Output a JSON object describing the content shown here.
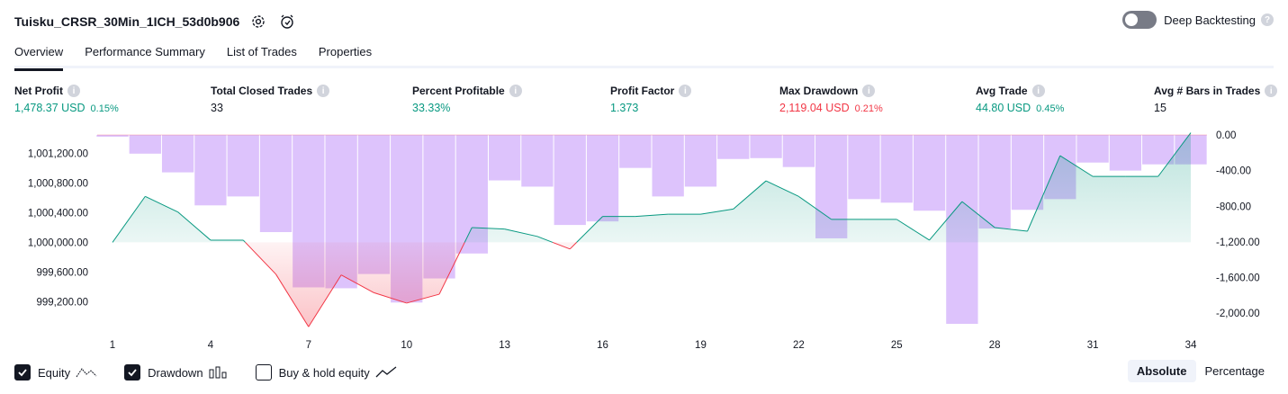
{
  "header": {
    "strategy_name": "Tuisku_CRSR_30Min_1ICH_53d0b906",
    "deep_backtesting_label": "Deep Backtesting",
    "deep_backtesting_enabled": false
  },
  "tabs": [
    {
      "label": "Overview",
      "active": true
    },
    {
      "label": "Performance Summary",
      "active": false
    },
    {
      "label": "List of Trades",
      "active": false
    },
    {
      "label": "Properties",
      "active": false
    }
  ],
  "metrics": [
    {
      "label": "Net Profit",
      "value": "1,478.37 USD",
      "pct": "0.15%",
      "color": "#089981"
    },
    {
      "label": "Total Closed Trades",
      "value": "33",
      "pct": "",
      "color": "#131722"
    },
    {
      "label": "Percent Profitable",
      "value": "33.33%",
      "pct": "",
      "color": "#089981"
    },
    {
      "label": "Profit Factor",
      "value": "1.373",
      "pct": "",
      "color": "#089981"
    },
    {
      "label": "Max Drawdown",
      "value": "2,119.04 USD",
      "pct": "0.21%",
      "color": "#f23645"
    },
    {
      "label": "Avg Trade",
      "value": "44.80 USD",
      "pct": "0.45%",
      "color": "#089981"
    },
    {
      "label": "Avg # Bars in Trades",
      "value": "15",
      "pct": "",
      "color": "#131722"
    }
  ],
  "chart_data": {
    "type": "line",
    "x_ticks": [
      "1",
      "4",
      "7",
      "10",
      "13",
      "16",
      "19",
      "22",
      "25",
      "28",
      "31",
      "34"
    ],
    "left_axis": {
      "ticks": [
        "1,001,200.00",
        "1,000,800.00",
        "1,000,400.00",
        "1,000,000.00",
        "999,600.00",
        "999,200.00"
      ],
      "ylim": [
        998900,
        1001450
      ]
    },
    "right_axis": {
      "ticks": [
        "0.00",
        "-400.00",
        "-800.00",
        "-1,200.00",
        "-1,600.00",
        "-2,000.00"
      ],
      "ylim": [
        -2119.04,
        0
      ]
    },
    "equity_baseline": 1000000,
    "series": [
      {
        "name": "Equity",
        "x": [
          1,
          2,
          3,
          4,
          5,
          6,
          7,
          8,
          9,
          10,
          11,
          12,
          13,
          14,
          15,
          16,
          17,
          18,
          19,
          20,
          21,
          22,
          23,
          24,
          25,
          26,
          27,
          28,
          29,
          30,
          31,
          32,
          33,
          34
        ],
        "values": [
          1000000,
          1000620,
          1000410,
          1000030,
          1000030,
          999570,
          998860,
          999560,
          999320,
          999180,
          999300,
          1000200,
          1000180,
          1000080,
          999910,
          1000350,
          1000350,
          1000380,
          1000380,
          1000450,
          1000830,
          1000620,
          1000310,
          1000310,
          1000310,
          1000030,
          1000550,
          1000200,
          1000150,
          1001170,
          1000890,
          1000890,
          1000890,
          1001480
        ],
        "color": "#089981"
      },
      {
        "name": "Drawdown",
        "x": [
          1,
          2,
          3,
          4,
          5,
          6,
          7,
          8,
          9,
          10,
          11,
          12,
          13,
          14,
          15,
          16,
          17,
          18,
          19,
          20,
          21,
          22,
          23,
          24,
          25,
          26,
          27,
          28,
          29,
          30,
          31,
          32,
          33,
          34
        ],
        "values": [
          -20,
          -210,
          -420,
          -790,
          -690,
          -1090,
          -1710,
          -1720,
          -1560,
          -1880,
          -1610,
          -1330,
          -510,
          -580,
          -1010,
          -970,
          -370,
          -690,
          -580,
          -270,
          -260,
          -360,
          -1160,
          -720,
          -760,
          -850,
          -2119,
          -1050,
          -840,
          -720,
          -310,
          -400,
          -330,
          -330
        ],
        "color": "#d7b8fc"
      }
    ]
  },
  "legend": [
    {
      "label": "Equity",
      "checked": true,
      "icon": "equity-line-icon"
    },
    {
      "label": "Drawdown",
      "checked": true,
      "icon": "drawdown-bars-icon"
    },
    {
      "label": "Buy & hold equity",
      "checked": false,
      "icon": "buy-hold-line-icon"
    }
  ],
  "view_modes": [
    {
      "label": "Absolute",
      "active": true
    },
    {
      "label": "Percentage",
      "active": false
    }
  ]
}
